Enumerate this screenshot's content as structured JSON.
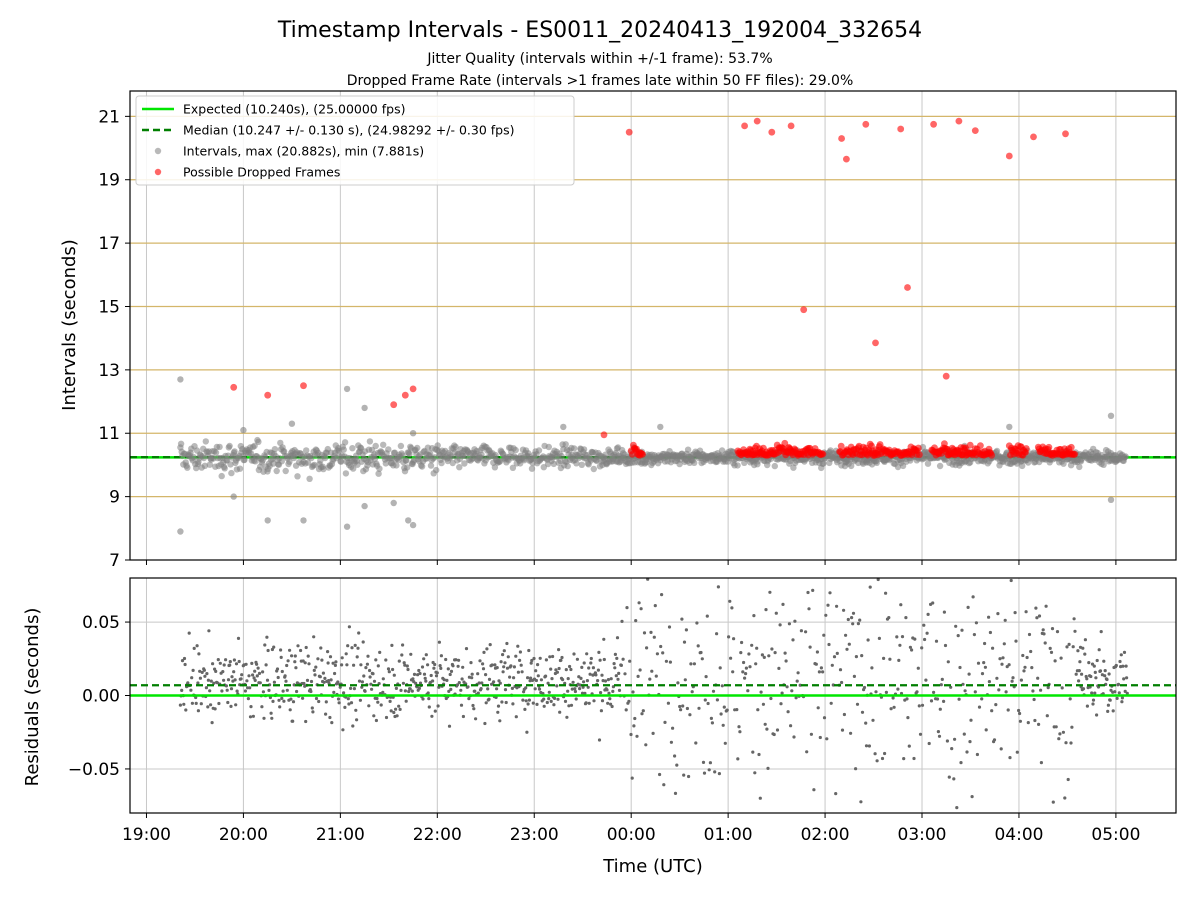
{
  "figure": {
    "title": "Timestamp Intervals - ES0011_20240413_192004_332654",
    "subtitle_1": "Jitter Quality (intervals within +/-1 frame): 53.7%",
    "subtitle_2": "Dropped Frame Rate (intervals >1 frames late within 50 FF files): 29.0%"
  },
  "colors": {
    "expected": "#00e600",
    "median": "#007f00",
    "intervals": "#808080",
    "dropped": "#ff0000",
    "ygrid": "#d4b66a",
    "xgrid": "#c8c8c8"
  },
  "chart_data": [
    {
      "type": "scatter",
      "ylabel": "Intervals (seconds)",
      "xlabel": "",
      "ylim": [
        7,
        21.8
      ],
      "xlim_hours": [
        18.83,
        29.62
      ],
      "ytick_labels": [
        "7",
        "9",
        "11",
        "13",
        "15",
        "17",
        "19",
        "21"
      ],
      "grid": {
        "x": true,
        "y": true
      },
      "legend_position": "upper-left",
      "legend": [
        {
          "key": "expected",
          "label": "Expected (10.240s), (25.00000 fps)",
          "style": "line"
        },
        {
          "key": "median",
          "label": "Median (10.247 +/- 0.130 s), (24.98292 +/- 0.30 fps)",
          "style": "dashed"
        },
        {
          "key": "intervals",
          "label": "Intervals, max (20.882s), min (7.881s)",
          "style": "marker"
        },
        {
          "key": "dropped",
          "label": "Possible Dropped Frames",
          "style": "marker"
        }
      ],
      "expected_interval": 10.24,
      "median_interval": 10.247,
      "interval_max": 20.882,
      "interval_min": 7.881,
      "dropped_points": [
        {
          "x": 19.9,
          "y": 12.45
        },
        {
          "x": 20.25,
          "y": 12.2
        },
        {
          "x": 20.62,
          "y": 12.5
        },
        {
          "x": 21.55,
          "y": 11.9
        },
        {
          "x": 21.67,
          "y": 12.2
        },
        {
          "x": 21.75,
          "y": 12.4
        },
        {
          "x": 23.72,
          "y": 10.95
        },
        {
          "x": 23.98,
          "y": 20.5
        },
        {
          "x": 25.17,
          "y": 20.7
        },
        {
          "x": 25.3,
          "y": 20.85
        },
        {
          "x": 25.45,
          "y": 20.5
        },
        {
          "x": 25.65,
          "y": 20.7
        },
        {
          "x": 25.78,
          "y": 14.9
        },
        {
          "x": 26.17,
          "y": 20.3
        },
        {
          "x": 26.22,
          "y": 19.65
        },
        {
          "x": 26.42,
          "y": 20.75
        },
        {
          "x": 26.52,
          "y": 13.85
        },
        {
          "x": 26.78,
          "y": 20.6
        },
        {
          "x": 26.85,
          "y": 15.6
        },
        {
          "x": 27.12,
          "y": 20.75
        },
        {
          "x": 27.25,
          "y": 12.8
        },
        {
          "x": 27.38,
          "y": 20.85
        },
        {
          "x": 27.55,
          "y": 20.55
        },
        {
          "x": 27.9,
          "y": 19.75
        },
        {
          "x": 28.15,
          "y": 20.35
        },
        {
          "x": 28.48,
          "y": 20.45
        }
      ],
      "interval_points": [
        {
          "x": 19.35,
          "y": 12.7
        },
        {
          "x": 19.35,
          "y": 7.9
        },
        {
          "x": 21.07,
          "y": 12.4
        },
        {
          "x": 21.25,
          "y": 11.8
        },
        {
          "x": 23.3,
          "y": 11.2
        },
        {
          "x": 24.3,
          "y": 11.2
        },
        {
          "x": 27.9,
          "y": 11.2
        },
        {
          "x": 28.95,
          "y": 11.55
        },
        {
          "x": 28.95,
          "y": 8.9
        },
        {
          "x": 19.9,
          "y": 9.0
        },
        {
          "x": 20.25,
          "y": 8.25
        },
        {
          "x": 20.62,
          "y": 8.25
        },
        {
          "x": 21.07,
          "y": 8.05
        },
        {
          "x": 21.25,
          "y": 8.7
        },
        {
          "x": 21.55,
          "y": 8.8
        },
        {
          "x": 21.7,
          "y": 8.25
        },
        {
          "x": 21.75,
          "y": 8.1
        },
        {
          "x": 20.0,
          "y": 11.1
        },
        {
          "x": 20.5,
          "y": 11.3
        },
        {
          "x": 21.75,
          "y": 11.0
        }
      ]
    },
    {
      "type": "scatter",
      "ylabel": "Residuals (seconds)",
      "xlabel": "Time (UTC)",
      "ylim": [
        -0.08,
        0.08
      ],
      "ytick_labels": [
        "−0.05",
        "0.00",
        "0.05"
      ],
      "xtick_labels": [
        "19:00",
        "20:00",
        "21:00",
        "22:00",
        "23:00",
        "00:00",
        "01:00",
        "02:00",
        "03:00",
        "04:00",
        "05:00"
      ],
      "grid": {
        "x": true,
        "y": true
      },
      "expected_residual": 0.0,
      "median_residual": 0.007
    }
  ]
}
